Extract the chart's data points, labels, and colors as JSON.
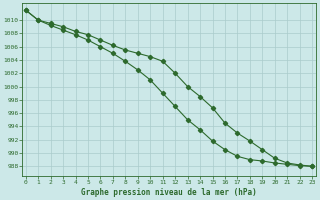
{
  "title": "Graphe pression niveau de la mer (hPa)",
  "x_labels": [
    "0",
    "1",
    "2",
    "3",
    "4",
    "5",
    "6",
    "7",
    "8",
    "9",
    "10",
    "11",
    "12",
    "13",
    "14",
    "15",
    "16",
    "17",
    "18",
    "19",
    "20",
    "21",
    "22",
    "23"
  ],
  "xlim": [
    -0.3,
    23.3
  ],
  "ylim": [
    986.5,
    1012.5
  ],
  "yticks": [
    988,
    990,
    992,
    994,
    996,
    998,
    1000,
    1002,
    1004,
    1006,
    1008,
    1010
  ],
  "line1": [
    1011.5,
    1010.0,
    1009.5,
    1009.0,
    1008.3,
    1007.8,
    1007.0,
    1006.2,
    1005.5,
    1005.0,
    1004.5,
    1003.8,
    1002.0,
    1000.0,
    998.5,
    996.8,
    994.5,
    993.0,
    991.8,
    990.5,
    989.2,
    988.5,
    988.2,
    988.0
  ],
  "line2": [
    1011.5,
    1010.0,
    1009.2,
    1008.5,
    1007.8,
    1007.0,
    1006.0,
    1005.0,
    1003.8,
    1002.5,
    1001.0,
    999.0,
    997.0,
    995.0,
    993.5,
    991.8,
    990.5,
    989.5,
    989.0,
    988.8,
    988.5,
    988.3,
    988.1,
    988.0
  ],
  "line_color": "#2d6a2d",
  "bg_color": "#cce8e8",
  "grid_color": "#aacccc",
  "text_color": "#2d6a2d",
  "marker": "D",
  "marker_size": 2.2,
  "linewidth": 0.8
}
